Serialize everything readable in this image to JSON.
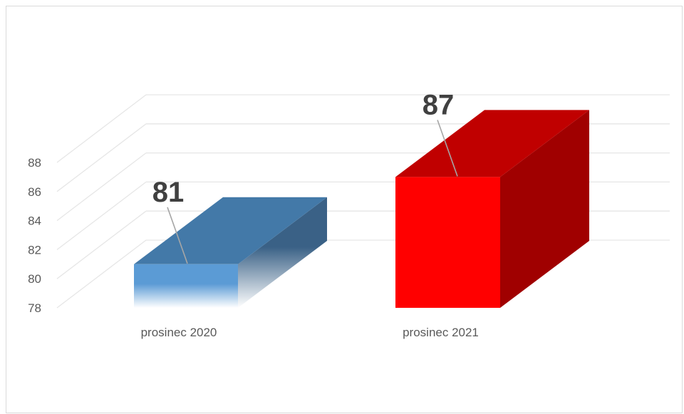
{
  "chart_data": {
    "type": "bar",
    "title": "",
    "xlabel": "",
    "ylabel": "",
    "categories": [
      "prosinec 2020",
      "prosinec 2021"
    ],
    "values": [
      81,
      87
    ],
    "data_labels": [
      "81",
      "87"
    ],
    "colors": [
      "#5b9bd5",
      "#ff0000"
    ],
    "ylim": [
      78,
      88
    ],
    "yticks": [
      {
        "value": 78,
        "label": "78"
      },
      {
        "value": 80,
        "label": "80"
      },
      {
        "value": 82,
        "label": "82"
      },
      {
        "value": 84,
        "label": "84"
      },
      {
        "value": 86,
        "label": "86"
      },
      {
        "value": 88,
        "label": "88"
      }
    ],
    "style": "3d-column",
    "grid": true,
    "legend": "none"
  }
}
